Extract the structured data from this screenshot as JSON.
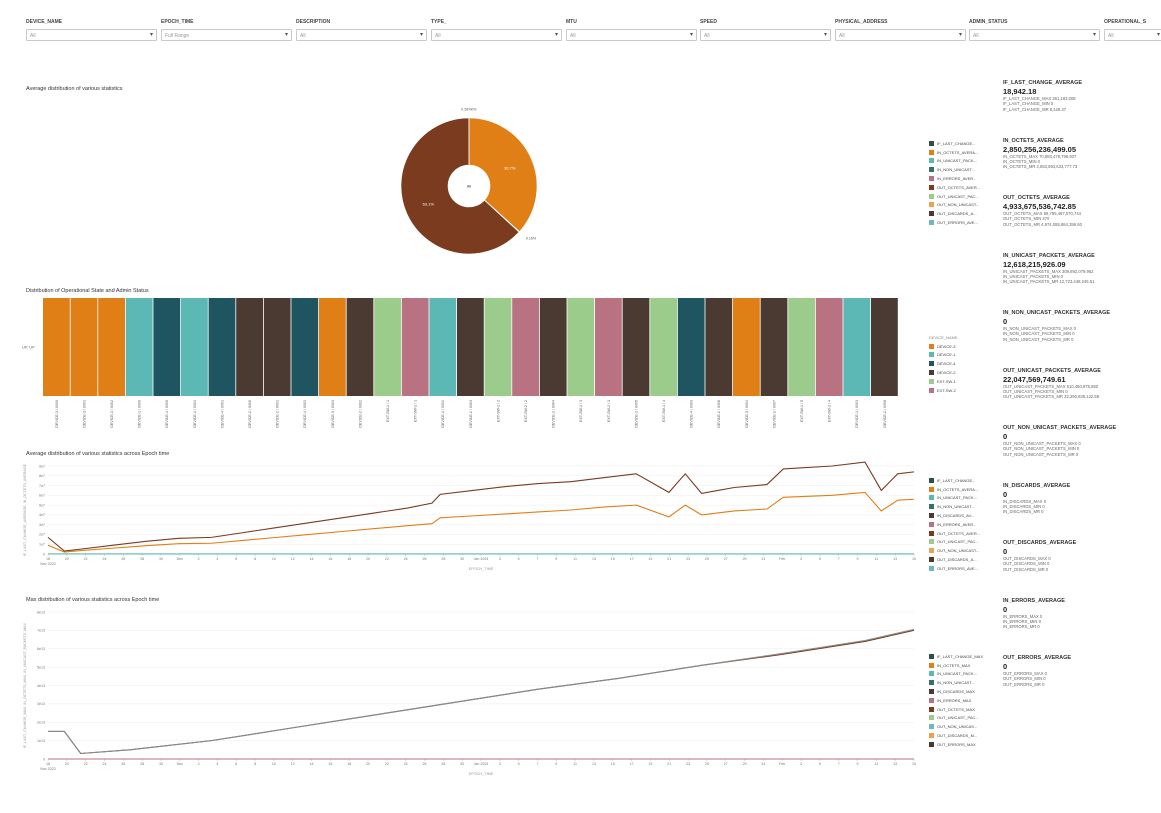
{
  "filters": [
    {
      "label": "DEVICE_NAME",
      "value": "All"
    },
    {
      "label": "EPOCH_TIME",
      "value": "Full Range"
    },
    {
      "label": "DESCRIPTION",
      "value": "All"
    },
    {
      "label": "TYPE_",
      "value": "All"
    },
    {
      "label": "MTU",
      "value": "All"
    },
    {
      "label": "SPEED",
      "value": "All"
    },
    {
      "label": "PHYSICAL_ADDRESS",
      "value": "All"
    },
    {
      "label": "ADMIN_STATUS",
      "value": "All"
    },
    {
      "label": "OPERATIONAL_S",
      "value": "All"
    }
  ],
  "panels": {
    "pie_title": "Average distribution of various statistics",
    "bar_title": "Distribution of Operational State and Admin Status",
    "line1_title": "Average distribution of various statistics across Epoch time",
    "line2_title": "Max distribution of various statistics across Epoch time"
  },
  "pie_legend": [
    {
      "label": "IF_LAST_CHANGE...",
      "color": "#2f4f4f"
    },
    {
      "label": "IN_OCTETS_AVERA...",
      "color": "#e07f16"
    },
    {
      "label": "IN_UNICAST_PACK...",
      "color": "#5bb8b4"
    },
    {
      "label": "IN_NON_UNICAST...",
      "color": "#3a6e6e"
    },
    {
      "label": "IN_ERRORS_AVER...",
      "color": "#b87282"
    },
    {
      "label": "OUT_OCTETS_AVER...",
      "color": "#7a3b1e"
    },
    {
      "label": "OUT_UNICAST_PAC...",
      "color": "#9ccc8c"
    },
    {
      "label": "OUT_NON_UNICAST...",
      "color": "#f0a050"
    },
    {
      "label": "OUT_DISCARDS_A...",
      "color": "#4b3a32"
    },
    {
      "label": "OUT_ERRORS_AVE...",
      "color": "#6fb8c0"
    }
  ],
  "bar_legend_title": "DEVICE_NAME",
  "bar_legend": [
    {
      "label": "DEVICE-3",
      "color": "#e07f16"
    },
    {
      "label": "DEVICE-1",
      "color": "#5bb8b4"
    },
    {
      "label": "DEVICE-4",
      "color": "#1f5560"
    },
    {
      "label": "DEVICE-2",
      "color": "#4b3a32"
    },
    {
      "label": "EXT-SW-1",
      "color": "#9ccc8c"
    },
    {
      "label": "EXT-SW-2",
      "color": "#b87282"
    }
  ],
  "line1_legend": [
    {
      "label": "IF_LAST_CHANGE...",
      "color": "#2f4f4f"
    },
    {
      "label": "IN_OCTETS_AVERA...",
      "color": "#e07f16"
    },
    {
      "label": "IN_UNICAST_PACK...",
      "color": "#5bb8b4"
    },
    {
      "label": "IN_NON_UNICAST...",
      "color": "#3a6e6e"
    },
    {
      "label": "IN_DISCARDS_AV...",
      "color": "#4b3a32"
    },
    {
      "label": "IN_ERRORS_AVER...",
      "color": "#b87282"
    },
    {
      "label": "OUT_OCTETS_AVER...",
      "color": "#7a3b1e"
    },
    {
      "label": "OUT_UNICAST_PAC...",
      "color": "#9ccc8c"
    },
    {
      "label": "OUT_NON_UNICAST...",
      "color": "#f0a050"
    },
    {
      "label": "OUT_DISCARDS_A...",
      "color": "#4b3a32"
    },
    {
      "label": "OUT_ERRORS_AVE...",
      "color": "#6fb8c0"
    }
  ],
  "line2_legend": [
    {
      "label": "IF_LAST_CHANGE_MAX",
      "color": "#2f4f4f"
    },
    {
      "label": "IN_OCTETS_MAX",
      "color": "#e07f16"
    },
    {
      "label": "IN_UNICAST_PACK...",
      "color": "#5bb8b4"
    },
    {
      "label": "IN_NON_UNICAST...",
      "color": "#3a6e6e"
    },
    {
      "label": "IN_DISCARDS_MAX",
      "color": "#4b3a32"
    },
    {
      "label": "IN_ERRORS_MAX",
      "color": "#b87282"
    },
    {
      "label": "OUT_OCTETS_MAX",
      "color": "#7a3b1e"
    },
    {
      "label": "OUT_UNICAST_PAC...",
      "color": "#9ccc8c"
    },
    {
      "label": "OUT_NON_UNICAS...",
      "color": "#6fb8c0"
    },
    {
      "label": "OUT_DISCARDS_M...",
      "color": "#f0a050"
    },
    {
      "label": "OUT_ERRORS_MAX",
      "color": "#4b3a32"
    }
  ],
  "kpis": [
    {
      "title": "IF_LAST_CHANGE_AVERAGE",
      "value": "18,942.18",
      "sub": [
        "IF_LAST_CHANGE_MAX 261,183,008",
        "IF_LAST_CHANGE_MIN 0",
        "IF_LAST_CHANGE_MR 9,428.37"
      ]
    },
    {
      "title": "IN_OCTETS_AVERAGE",
      "value": "2,850,256,236,499.05",
      "sub": [
        "IN_OCTETS_MAX 70,883,478,796,937",
        "IN_OCTETS_MIN 0",
        "IN_OCTETS_MR 2,853,693,633,777.73"
      ]
    },
    {
      "title": "OUT_OCTETS_AVERAGE",
      "value": "4,933,675,536,742.85",
      "sub": [
        "OUT_OCTETS_MAX 69,795,487,070,744",
        "OUT_OCTETS_MIN 470",
        "OUT_OCTETS_MR 4,974,085,884,396.60"
      ]
    },
    {
      "title": "IN_UNICAST_PACKETS_AVERAGE",
      "value": "12,618,215,926.09",
      "sub": [
        "IN_UNICAST_PACKETS_MAX 309,892,079,962",
        "IN_UNICAST_PACKETS_MIN 0",
        "IN_UNICAST_PACKETS_MR 12,723,448,245.51"
      ]
    },
    {
      "title": "IN_NON_UNICAST_PACKETS_AVERAGE",
      "value": "0",
      "sub": [
        "IN_NON_UNICAST_PACKETS_MAX 0",
        "IN_NON_UNICAST_PACKETS_MIN 0",
        "IN_NON_UNICAST_PACKETS_MR 0"
      ]
    },
    {
      "title": "OUT_UNICAST_PACKETS_AVERAGE",
      "value": "22,047,569,749.61",
      "sub": [
        "OUT_UNICAST_PACKETS_MAX 510,460,975,850",
        "OUT_UNICAST_PACKETS_MIN 0",
        "OUT_UNICAST_PACKETS_MR 22,290,835,122.58"
      ]
    },
    {
      "title": "OUT_NON_UNICAST_PACKETS_AVERAGE",
      "value": "0",
      "sub": [
        "OUT_NON_UNICAST_PACKETS_MAX 0",
        "OUT_NON_UNICAST_PACKETS_MIN 0",
        "OUT_NON_UNICAST_PACKETS_MR 0"
      ]
    },
    {
      "title": "IN_DISCARDS_AVERAGE",
      "value": "0",
      "sub": [
        "IN_DISCARDS_MAX 0",
        "IN_DISCARDS_MIN 0",
        "IN_DISCARDS_MR 0"
      ]
    },
    {
      "title": "OUT_DISCARDS_AVERAGE",
      "value": "0",
      "sub": [
        "OUT_DISCARDS_MAX 0",
        "OUT_DISCARDS_MIN 0",
        "OUT_DISCARDS_MR 0"
      ]
    },
    {
      "title": "IN_ERRORS_AVERAGE",
      "value": "0",
      "sub": [
        "IN_ERRORS_MAX 0",
        "IN_ERRORS_MIN 0",
        "IN_ERRORS_MR 0"
      ]
    },
    {
      "title": "OUT_ERRORS_AVERAGE",
      "value": "0",
      "sub": [
        "OUT_ERRORS_MAX 0",
        "OUT_ERRORS_MIN 0",
        "OUT_ERRORS_MR 0"
      ]
    }
  ],
  "chart_data": [
    {
      "type": "pie",
      "title": "Average distribution of various statistics",
      "center_label": "All",
      "slices": [
        {
          "name": "IN_OCTETS_AVERAGE",
          "value": 36.7,
          "label": "36.7%",
          "color": "#e07f16"
        },
        {
          "name": "IN_UNICAST_PACKETS_AVERAGE",
          "value": 0.16,
          "label": "0.16%",
          "color": "#5bb8b4"
        },
        {
          "name": "OUT_OCTETS_AVERAGE",
          "value": 63.1,
          "label": "63.1%",
          "color": "#7a3b1e"
        },
        {
          "name": "IF_LAST_CHANGE_AVERAGE",
          "value": 0.04,
          "label": "0.28%0%",
          "color": "#2f4f4f"
        }
      ]
    },
    {
      "type": "bar",
      "title": "Distribution of Operational State and Admin Status",
      "ylabel": "UP, UP",
      "legend_title": "DEVICE_NAME",
      "categories": [
        "DEVICE-3 / 0/0/0",
        "DEVICE-3 / 0/0/1",
        "DEVICE-3 / 0/0/2",
        "DEVICE-1 / 0/0/0",
        "DEVICE-4 / 0/0/0",
        "DEVICE-1 / 0/0/1",
        "DEVICE-4 / 0/0/1",
        "DEVICE-2 / 0/0/0",
        "DEVICE-2 / 0/0/1",
        "DEVICE-4 / 0/0/2",
        "DEVICE-3 / 0/0/3",
        "DEVICE-2 / 0/0/2",
        "EXT-SW-1 / 1",
        "EXT-SW-2 / 1",
        "DEVICE-1 / 0/0/2",
        "DEVICE-2 / 0/0/3",
        "EXT-SW-1 / 2",
        "EXT-SW-2 / 2",
        "DEVICE-2 / 0/0/4",
        "EXT-SW-1 / 3",
        "EXT-SW-2 / 3",
        "DEVICE-2 / 0/0/5",
        "EXT-SW-1 / 4",
        "DEVICE-4 / 0/0/3",
        "DEVICE-2 / 0/0/6",
        "DEVICE-3 / 0/0/4",
        "DEVICE-2 / 0/0/7",
        "EXT-SW-1 / 5",
        "EXT-SW-2 / 4",
        "DEVICE-1 / 0/0/3",
        "DEVICE-2 / 0/0/8"
      ],
      "series_colors": [
        "#e07f16",
        "#e07f16",
        "#e07f16",
        "#5bb8b4",
        "#1f5560",
        "#5bb8b4",
        "#1f5560",
        "#4b3a32",
        "#4b3a32",
        "#1f5560",
        "#e07f16",
        "#4b3a32",
        "#9ccc8c",
        "#b87282",
        "#5bb8b4",
        "#4b3a32",
        "#9ccc8c",
        "#b87282",
        "#4b3a32",
        "#9ccc8c",
        "#b87282",
        "#4b3a32",
        "#9ccc8c",
        "#1f5560",
        "#4b3a32",
        "#e07f16",
        "#4b3a32",
        "#9ccc8c",
        "#b87282",
        "#5bb8b4",
        "#4b3a32"
      ],
      "values": [
        1,
        1,
        1,
        1,
        1,
        1,
        1,
        1,
        1,
        1,
        1,
        1,
        1,
        1,
        1,
        1,
        1,
        1,
        1,
        1,
        1,
        1,
        1,
        1,
        1,
        1,
        1,
        1,
        1,
        1,
        1
      ]
    },
    {
      "type": "line",
      "title": "Average distribution of various statistics across Epoch time",
      "xlabel": "EPOCH_TIME",
      "ylabel": "IF_LAST_CHANGE_AVERAGE, IN_OCTETS_AVERAGE",
      "x_ticks": [
        "18",
        "20",
        "22",
        "24",
        "26",
        "28",
        "30",
        "Dec",
        "2",
        "4",
        "6",
        "8",
        "10",
        "12",
        "14",
        "16",
        "18",
        "20",
        "22",
        "24",
        "26",
        "28",
        "30",
        "Jan 2024",
        "3",
        "5",
        "7",
        "9",
        "11",
        "13",
        "15",
        "17",
        "19",
        "21",
        "23",
        "25",
        "27",
        "29",
        "31",
        "Feb",
        "3",
        "5",
        "7",
        "9",
        "11",
        "13",
        "15"
      ],
      "x_sublabels": [
        "Nov 2023"
      ],
      "y_ticks": [
        "0",
        "1e7",
        "2e7",
        "3e7",
        "4e7",
        "5e7",
        "6e7",
        "7e7",
        "8e7",
        "9e7"
      ],
      "ylim": [
        0,
        90000000
      ],
      "x": [
        0,
        2,
        4,
        8,
        12,
        16,
        20,
        24,
        28,
        32,
        36,
        40,
        44,
        47,
        48,
        52,
        56,
        60,
        64,
        68,
        72,
        76,
        78,
        80,
        82,
        84,
        88,
        90,
        96,
        100,
        102,
        104,
        106
      ],
      "series": [
        {
          "name": "OUT_OCTETS_AVERAGE",
          "color": "#7a3b1e",
          "values": [
            17000000,
            3000000,
            5000000,
            9000000,
            13000000,
            16000000,
            17000000,
            22000000,
            27000000,
            32000000,
            37000000,
            42000000,
            47000000,
            52000000,
            61000000,
            65000000,
            69000000,
            72000000,
            74000000,
            78000000,
            82000000,
            63000000,
            82000000,
            62000000,
            65000000,
            68000000,
            71000000,
            87000000,
            90000000,
            94000000,
            65000000,
            82000000,
            84000000
          ]
        },
        {
          "name": "IN_OCTETS_AVERAGE",
          "color": "#e07f16",
          "values": [
            9000000,
            2000000,
            3500000,
            6000000,
            8500000,
            10500000,
            11000000,
            14000000,
            17000000,
            20000000,
            23000000,
            26000000,
            29000000,
            31000000,
            37000000,
            39000000,
            41000000,
            43000000,
            45000000,
            48000000,
            50000000,
            38000000,
            50000000,
            40000000,
            42000000,
            44000000,
            46000000,
            58000000,
            60000000,
            63000000,
            44000000,
            55000000,
            56000000
          ]
        },
        {
          "name": "IN_UNICAST_PACKETS_AVERAGE",
          "color": "#5bb8b4",
          "values": [
            100000,
            100000,
            100000,
            100000,
            100000,
            100000,
            100000,
            100000,
            100000,
            100000,
            100000,
            100000,
            100000,
            100000,
            100000,
            100000,
            100000,
            100000,
            100000,
            100000,
            100000,
            100000,
            100000,
            100000,
            100000,
            100000,
            100000,
            100000,
            100000,
            100000,
            100000,
            100000,
            100000
          ]
        }
      ]
    },
    {
      "type": "line",
      "title": "Max distribution of various statistics across Epoch time",
      "xlabel": "EPOCH_TIME",
      "ylabel": "IF_LAST_CHANGE_MAX, IN_OCTETS_MAX, IN_UNICAST_PACKETS_MAX",
      "x_ticks": [
        "18",
        "20",
        "22",
        "24",
        "26",
        "28",
        "30",
        "Dec",
        "2",
        "4",
        "6",
        "8",
        "10",
        "12",
        "14",
        "16",
        "18",
        "20",
        "22",
        "24",
        "26",
        "28",
        "30",
        "Jan 2024",
        "3",
        "5",
        "7",
        "9",
        "11",
        "13",
        "15",
        "17",
        "19",
        "21",
        "23",
        "25",
        "27",
        "29",
        "31",
        "Feb",
        "3",
        "5",
        "7",
        "9",
        "11",
        "13",
        "15"
      ],
      "x_sublabels": [
        "Nov 2023"
      ],
      "y_ticks": [
        "0",
        "1e13",
        "2e13",
        "3e13",
        "4e13",
        "5e13",
        "6e13",
        "7e13",
        "8e13"
      ],
      "ylim": [
        0,
        80000000000000
      ],
      "x": [
        0,
        2,
        4,
        10,
        20,
        30,
        40,
        50,
        60,
        70,
        80,
        90,
        100,
        106
      ],
      "series": [
        {
          "name": "IN_OCTETS_MAX",
          "color": "#7a3b1e",
          "values": [
            15000000000000,
            15000000000000,
            3000000000000,
            5000000000000,
            10000000000000,
            17000000000000,
            24000000000000,
            31000000000000,
            38000000000000,
            44000000000000,
            51000000000000,
            57000000000000,
            64000000000000,
            70000000000000
          ]
        },
        {
          "name": "OUT_OCTETS_MAX",
          "color": "#8a8a8a",
          "values": [
            15000000000000,
            15000000000000,
            3000000000000,
            5000000000000,
            10000000000000,
            17000000000000,
            24000000000000,
            31000000000000,
            38000000000000,
            44000000000000,
            51000000000000,
            57500000000000,
            64500000000000,
            70500000000000
          ]
        },
        {
          "name": "IN_UNICAST_PACKETS_MAX",
          "color": "#b87282",
          "values": [
            0,
            0,
            0,
            0,
            0,
            0,
            0,
            0,
            0,
            0,
            0,
            0,
            0,
            0
          ]
        }
      ]
    }
  ]
}
